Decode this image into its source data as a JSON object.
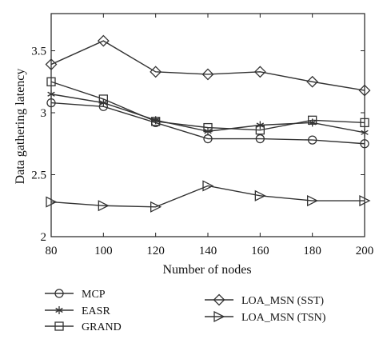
{
  "chart_data": {
    "type": "line",
    "xlabel": "Number of nodes",
    "ylabel": "Data gathering latency",
    "x": [
      80,
      100,
      120,
      140,
      160,
      180,
      200
    ],
    "xlim": [
      80,
      200
    ],
    "ylim": [
      2,
      3.8
    ],
    "xticks": [
      "80",
      "100",
      "120",
      "140",
      "160",
      "180",
      "200"
    ],
    "yticks": [
      "2",
      "2.5",
      "3",
      "3.5"
    ],
    "grid": false,
    "legend_position": "bottom",
    "series": [
      {
        "name": "MCP",
        "marker": "circle",
        "values": [
          3.08,
          3.05,
          2.92,
          2.79,
          2.79,
          2.78,
          2.75
        ]
      },
      {
        "name": "EASR",
        "marker": "asterisk",
        "values": [
          3.15,
          3.08,
          2.94,
          2.85,
          2.9,
          2.92,
          2.84
        ]
      },
      {
        "name": "GRAND",
        "marker": "square",
        "values": [
          3.25,
          3.11,
          2.93,
          2.88,
          2.86,
          2.94,
          2.92
        ]
      },
      {
        "name": "LOA_MSN (SST)",
        "marker": "diamond",
        "values": [
          3.39,
          3.58,
          3.33,
          3.31,
          3.33,
          3.25,
          3.18
        ]
      },
      {
        "name": "LOA_MSN (TSN)",
        "marker": "triangle-right",
        "values": [
          2.28,
          2.25,
          2.24,
          2.41,
          2.33,
          2.29,
          2.29
        ]
      }
    ]
  }
}
